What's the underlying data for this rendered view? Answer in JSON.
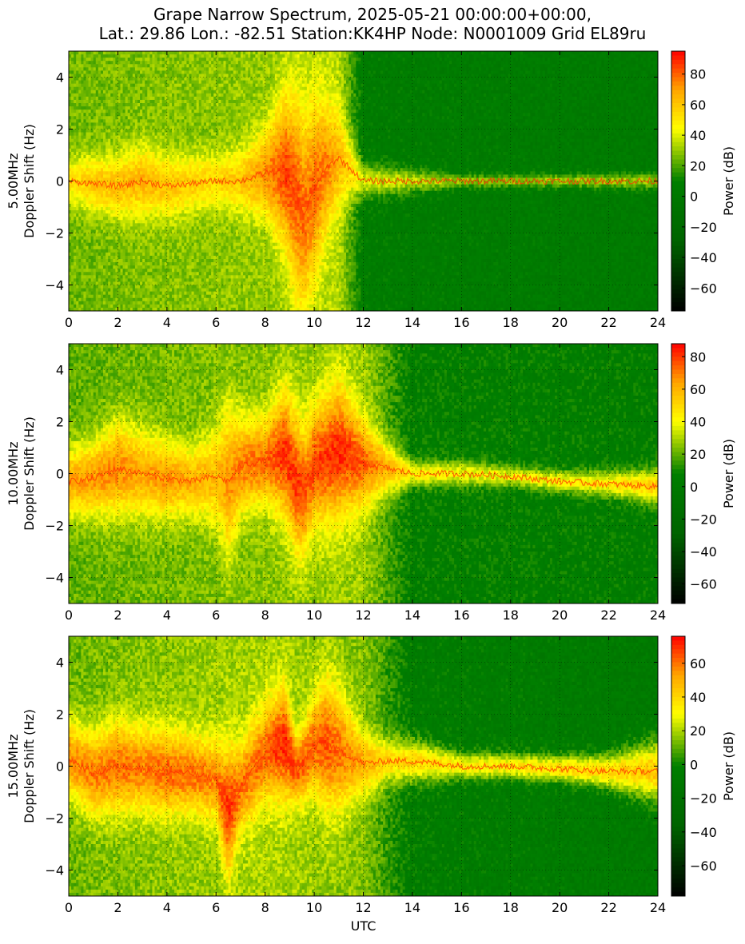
{
  "title": {
    "line1": "Grape Narrow Spectrum, 2025-05-21 00:00:00+00:00,",
    "line2": "Lat.: 29.86 Lon.: -82.51 Station:KK4HP Node: N0001009 Grid EL89ru"
  },
  "xlabel": "UTC",
  "colormap": {
    "stops": [
      "#000000",
      "#006400",
      "#008000",
      "#ffff00",
      "#ffa500",
      "#ff0000"
    ],
    "label": "Power (dB)"
  },
  "chart_data": [
    {
      "type": "heatmap",
      "freq_label": "5.00MHz",
      "ylabel": "Doppler Shift (Hz)",
      "xlabel": "UTC",
      "xlim": [
        0,
        24
      ],
      "ylim": [
        -5,
        5
      ],
      "x_ticks": [
        0,
        2,
        4,
        6,
        8,
        10,
        12,
        14,
        16,
        18,
        20,
        22,
        24
      ],
      "y_ticks": [
        -4,
        -2,
        0,
        2,
        4
      ],
      "grid": true,
      "colorbar": {
        "label": "Power (dB)",
        "range": [
          -75,
          95
        ],
        "ticks": [
          -60,
          -40,
          -20,
          0,
          20,
          40,
          60,
          80
        ]
      },
      "trace": {
        "x": [
          0,
          1,
          2,
          3,
          4,
          5,
          6,
          7,
          8,
          8.8,
          9.3,
          9.6,
          10,
          10.5,
          11,
          12,
          16,
          20,
          24
        ],
        "y": [
          0,
          -0.1,
          -0.2,
          0,
          -0.2,
          -0.1,
          0,
          0,
          0.3,
          0.4,
          -0.6,
          -1.3,
          -0.3,
          0.5,
          0.9,
          0,
          0,
          0,
          0
        ],
        "peak_db": [
          50,
          60,
          62,
          65,
          60,
          58,
          55,
          60,
          72,
          85,
          82,
          78,
          80,
          75,
          65,
          40,
          30,
          30,
          30
        ],
        "spread": [
          1.2,
          1.3,
          1.5,
          1.6,
          1.5,
          1.3,
          1.2,
          1.4,
          2.0,
          3.5,
          4.5,
          4.5,
          4.0,
          3.0,
          2.2,
          0.8,
          0.3,
          0.3,
          0.4
        ]
      },
      "background_db": {
        "x": [
          0,
          8,
          11,
          12,
          24
        ],
        "db": [
          25,
          30,
          35,
          5,
          3
        ]
      }
    },
    {
      "type": "heatmap",
      "freq_label": "10.00MHz",
      "ylabel": "Doppler Shift (Hz)",
      "xlabel": "UTC",
      "xlim": [
        0,
        24
      ],
      "ylim": [
        -5,
        5
      ],
      "x_ticks": [
        0,
        2,
        4,
        6,
        8,
        10,
        12,
        14,
        16,
        18,
        20,
        22,
        24
      ],
      "y_ticks": [
        -4,
        -2,
        0,
        2,
        4
      ],
      "grid": true,
      "colorbar": {
        "label": "Power (dB)",
        "range": [
          -72,
          88
        ],
        "ticks": [
          -60,
          -40,
          -20,
          0,
          20,
          40,
          60,
          80
        ]
      },
      "trace": {
        "x": [
          0,
          1,
          2,
          3,
          4,
          5,
          6,
          6.5,
          7,
          8,
          8.8,
          9.3,
          9.6,
          10,
          10.5,
          11,
          12,
          13,
          14,
          16,
          18,
          20,
          22,
          24
        ],
        "y": [
          -0.3,
          -0.2,
          0.2,
          0,
          -0.2,
          -0.3,
          -0.1,
          -0.3,
          0.3,
          0.5,
          0.8,
          -0.4,
          -0.6,
          0.3,
          0.6,
          0.9,
          0.4,
          0.2,
          0,
          0,
          -0.1,
          -0.3,
          -0.4,
          -0.5
        ],
        "peak_db": [
          62,
          65,
          68,
          62,
          65,
          60,
          58,
          65,
          70,
          72,
          82,
          80,
          76,
          78,
          80,
          82,
          75,
          60,
          45,
          40,
          38,
          42,
          45,
          55
        ],
        "spread": [
          1.6,
          1.8,
          2.2,
          2.0,
          1.8,
          1.6,
          2.2,
          3.5,
          2.2,
          2.0,
          3.0,
          3.2,
          3.0,
          2.8,
          3.0,
          3.2,
          2.0,
          1.2,
          0.6,
          0.6,
          0.5,
          0.5,
          0.6,
          0.8
        ]
      },
      "background_db": {
        "x": [
          0,
          8,
          12,
          14,
          24
        ],
        "db": [
          20,
          25,
          28,
          6,
          5
        ]
      }
    },
    {
      "type": "heatmap",
      "freq_label": "15.00MHz",
      "ylabel": "Doppler Shift (Hz)",
      "xlabel": "UTC",
      "xlim": [
        0,
        24
      ],
      "ylim": [
        -5,
        5
      ],
      "x_ticks": [
        0,
        2,
        4,
        6,
        8,
        10,
        12,
        14,
        16,
        18,
        20,
        22,
        24
      ],
      "y_ticks": [
        -4,
        -2,
        0,
        2,
        4
      ],
      "grid": true,
      "colorbar": {
        "label": "Power (dB)",
        "range": [
          -78,
          76
        ],
        "ticks": [
          -60,
          -40,
          -20,
          0,
          20,
          40,
          60
        ]
      },
      "trace": {
        "x": [
          0,
          1,
          2,
          3,
          4,
          5,
          6,
          6.5,
          7,
          8,
          8.8,
          9.3,
          10,
          10.5,
          11,
          12,
          13,
          14,
          16,
          18,
          20,
          22,
          24
        ],
        "y": [
          0.3,
          -0.3,
          0,
          -0.1,
          -0.2,
          -0.3,
          -0.5,
          -1.8,
          -0.8,
          0.5,
          0.9,
          -0.2,
          0.8,
          0.9,
          0.6,
          0.1,
          0.2,
          0.2,
          0,
          0,
          -0.1,
          -0.2,
          -0.2
        ],
        "peak_db": [
          55,
          58,
          60,
          58,
          62,
          60,
          58,
          70,
          60,
          62,
          72,
          65,
          62,
          65,
          60,
          50,
          40,
          40,
          35,
          35,
          38,
          40,
          45
        ],
        "spread": [
          1.8,
          2.0,
          2.2,
          2.0,
          2.0,
          1.8,
          1.8,
          3.0,
          2.0,
          2.2,
          2.6,
          1.5,
          2.2,
          3.0,
          2.8,
          1.5,
          1.0,
          1.0,
          0.6,
          0.6,
          0.6,
          0.8,
          1.4
        ]
      },
      "background_db": {
        "x": [
          0,
          8,
          12,
          14,
          24
        ],
        "db": [
          12,
          20,
          15,
          -5,
          -8
        ]
      }
    }
  ]
}
